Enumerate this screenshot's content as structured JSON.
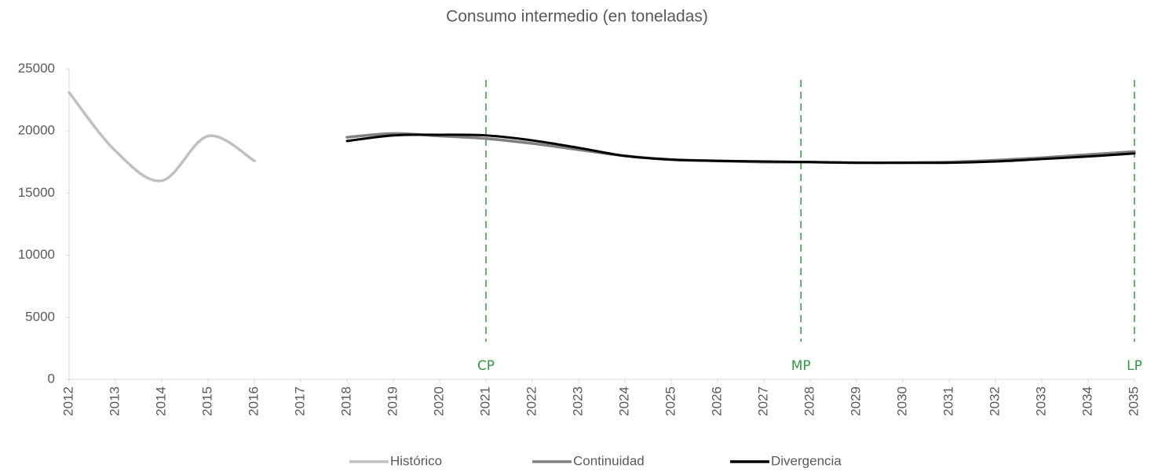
{
  "chart_data": {
    "type": "line",
    "title": "Consumo intermedio (en toneladas)",
    "x": [
      2012,
      2013,
      2014,
      2015,
      2016,
      2017,
      2018,
      2019,
      2020,
      2021,
      2022,
      2023,
      2024,
      2025,
      2026,
      2027,
      2028,
      2029,
      2030,
      2031,
      2032,
      2033,
      2034,
      2035
    ],
    "xlim": [
      2012,
      2035
    ],
    "xticks": [
      2012,
      2013,
      2014,
      2015,
      2016,
      2017,
      2018,
      2019,
      2020,
      2021,
      2022,
      2023,
      2024,
      2025,
      2026,
      2027,
      2028,
      2029,
      2030,
      2031,
      2032,
      2033,
      2034,
      2035
    ],
    "ylim": [
      0,
      25000
    ],
    "yticks": [
      0,
      5000,
      10000,
      15000,
      20000,
      25000
    ],
    "series": [
      {
        "name": "Histórico",
        "color": "#c0c0c0",
        "values": [
          23100,
          18400,
          16000,
          19600,
          17600,
          null,
          null,
          null,
          null,
          null,
          null,
          null,
          null,
          null,
          null,
          null,
          null,
          null,
          null,
          null,
          null,
          null,
          null,
          null
        ]
      },
      {
        "name": "Continuidad",
        "color": "#808080",
        "values": [
          null,
          null,
          null,
          null,
          null,
          null,
          19500,
          19800,
          19600,
          19400,
          19000,
          18500,
          18000,
          17700,
          17600,
          17500,
          17500,
          17450,
          17450,
          17500,
          17650,
          17850,
          18100,
          18350
        ]
      },
      {
        "name": "Divergencia",
        "color": "#000000",
        "values": [
          null,
          null,
          null,
          null,
          null,
          null,
          19200,
          19650,
          19700,
          19650,
          19250,
          18650,
          18000,
          17700,
          17600,
          17550,
          17500,
          17450,
          17450,
          17450,
          17550,
          17750,
          17950,
          18200
        ]
      }
    ],
    "annotations": [
      {
        "label": "CP",
        "x": 2021
      },
      {
        "label": "MP",
        "x": 2027.8
      },
      {
        "label": "LP",
        "x": 2035
      }
    ],
    "legend": "bottom"
  }
}
